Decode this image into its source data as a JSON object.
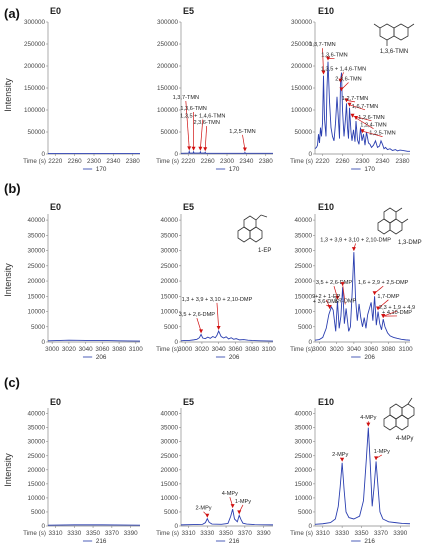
{
  "rows": [
    {
      "label": "(a)",
      "ylabel": "Intensity",
      "panels": [
        {
          "id": "a0",
          "title": "E0",
          "legend": "170",
          "struct": null,
          "show_xlabel": true
        },
        {
          "id": "a1",
          "title": "E5",
          "legend": "170",
          "struct": null,
          "show_xlabel": true
        },
        {
          "id": "a2",
          "title": "E10",
          "legend": "170",
          "struct": "1,3,6-TMN",
          "show_xlabel": true
        }
      ]
    },
    {
      "label": "(b)",
      "ylabel": "Intensity",
      "panels": [
        {
          "id": "b0",
          "title": "E0",
          "legend": "206",
          "struct": null,
          "show_xlabel": false
        },
        {
          "id": "b1",
          "title": "E5",
          "legend": "206",
          "struct": "1-EP",
          "show_xlabel": true
        },
        {
          "id": "b2",
          "title": "E10",
          "legend": "206",
          "struct": "1,3-DMP",
          "show_xlabel": true
        }
      ]
    },
    {
      "label": "(c)",
      "ylabel": "Intensity",
      "panels": [
        {
          "id": "c0",
          "title": "E0",
          "legend": "216",
          "struct": null,
          "show_xlabel": true
        },
        {
          "id": "c1",
          "title": "E5",
          "legend": "216",
          "struct": null,
          "show_xlabel": true
        },
        {
          "id": "c2",
          "title": "E10",
          "legend": "216",
          "struct": "4-MPy",
          "show_xlabel": true
        }
      ]
    }
  ],
  "chart_data": [
    {
      "id": "a0",
      "type": "line",
      "title": "E0",
      "xlabel": "Time (s)",
      "legend": "170",
      "xlim": [
        2205,
        2395
      ],
      "ylim": [
        0,
        300000
      ],
      "xticks": [
        2220,
        2260,
        2300,
        2340,
        2380
      ],
      "yticks": [
        0,
        50000,
        100000,
        150000,
        200000,
        250000,
        300000
      ],
      "x": [
        2205,
        2395
      ],
      "y": [
        1000,
        1000
      ],
      "annotations": []
    },
    {
      "id": "a1",
      "type": "line",
      "title": "E5",
      "xlabel": "Time (s)",
      "legend": "170",
      "xlim": [
        2205,
        2395
      ],
      "ylim": [
        0,
        300000
      ],
      "xticks": [
        2220,
        2260,
        2300,
        2340,
        2380
      ],
      "yticks": [
        0,
        50000,
        100000,
        150000,
        200000,
        250000,
        300000
      ],
      "x": [
        2205,
        2215,
        2221,
        2222,
        2223,
        2230,
        2231,
        2232,
        2244,
        2245,
        2246,
        2254,
        2255,
        2256,
        2300,
        2336,
        2337,
        2338,
        2395
      ],
      "y": [
        1500,
        1800,
        2000,
        6000,
        2000,
        2000,
        5000,
        2000,
        2000,
        5000,
        2000,
        2000,
        4000,
        1500,
        1500,
        1500,
        3500,
        1500,
        1500
      ],
      "annotations": [
        {
          "text": "1,3,7-TMN",
          "x": 2222,
          "y": 6000,
          "label_x": 2215,
          "label_y": 125000
        },
        {
          "text": "1,3,6-TMN",
          "x": 2231,
          "y": 5000,
          "label_x": 2231,
          "label_y": 100000
        },
        {
          "text": "1,3,5 + 1,4,6-TMN",
          "x": 2245,
          "y": 5000,
          "label_x": 2250,
          "label_y": 83000
        },
        {
          "text": "2,3,6-TMN",
          "x": 2255,
          "y": 4000,
          "label_x": 2258,
          "label_y": 68000
        },
        {
          "text": "1,2,5-TMN",
          "x": 2337,
          "y": 3500,
          "label_x": 2332,
          "label_y": 48000
        }
      ]
    },
    {
      "id": "a2",
      "type": "line",
      "title": "E10",
      "xlabel": "Time (s)",
      "legend": "170",
      "xlim": [
        2205,
        2395
      ],
      "ylim": [
        0,
        300000
      ],
      "xticks": [
        2220,
        2260,
        2300,
        2340,
        2380
      ],
      "yticks": [
        0,
        50000,
        100000,
        150000,
        200000,
        250000,
        300000
      ],
      "x": [
        2205,
        2208,
        2210,
        2212,
        2214,
        2216,
        2218,
        2220,
        2222,
        2224,
        2227,
        2229,
        2231,
        2234,
        2237,
        2240,
        2243,
        2246,
        2249,
        2252,
        2254,
        2256,
        2258,
        2260,
        2263,
        2266,
        2268,
        2270,
        2272,
        2274,
        2277,
        2279,
        2282,
        2285,
        2287,
        2290,
        2293,
        2296,
        2299,
        2302,
        2305,
        2308,
        2312,
        2315,
        2318,
        2322,
        2326,
        2330,
        2334,
        2337,
        2340,
        2343,
        2346,
        2350,
        2355,
        2360,
        2366,
        2370,
        2375,
        2380,
        2386,
        2390,
        2395
      ],
      "y": [
        12000,
        15000,
        20000,
        45000,
        25000,
        60000,
        40000,
        70000,
        178000,
        80000,
        40000,
        150000,
        210000,
        120000,
        60000,
        40000,
        30000,
        70000,
        130000,
        75000,
        35000,
        160000,
        185000,
        100000,
        40000,
        80000,
        115000,
        60000,
        35000,
        105000,
        50000,
        30000,
        55000,
        28000,
        75000,
        32000,
        22000,
        60000,
        30000,
        45000,
        20000,
        50000,
        25000,
        22000,
        15000,
        20000,
        30000,
        15000,
        18000,
        30000,
        22000,
        12000,
        15000,
        10000,
        12000,
        8000,
        10000,
        7000,
        9000,
        8000,
        7000,
        6000,
        6000
      ],
      "annotations": [
        {
          "text": "1,3,7-TMN",
          "x": 2222,
          "y": 178000,
          "label_x": 2220,
          "label_y": 245000
        },
        {
          "text": "1,3,6-TMN",
          "x": 2231,
          "y": 210000,
          "label_x": 2244,
          "label_y": 222000
        },
        {
          "text": "1,3,5 + 1,4,6-TMN",
          "x": 2256,
          "y": 160000,
          "label_x": 2262,
          "label_y": 190000
        },
        {
          "text": "2,3,6-TMN",
          "x": 2258,
          "y": 140000,
          "label_x": 2272,
          "label_y": 167000
        },
        {
          "text": "1,2,7-TMN",
          "x": 2268,
          "y": 115000,
          "label_x": 2285,
          "label_y": 123000
        },
        {
          "text": "1,6,7-TMN",
          "x": 2274,
          "y": 105000,
          "label_x": 2305,
          "label_y": 105000
        },
        {
          "text": "1,2,6-TMN",
          "x": 2280,
          "y": 80000,
          "label_x": 2318,
          "label_y": 80000
        },
        {
          "text": "1,2,4-TMN",
          "x": 2287,
          "y": 75000,
          "label_x": 2322,
          "label_y": 62000
        },
        {
          "text": "1,2,5-TMN",
          "x": 2300,
          "y": 45000,
          "label_x": 2340,
          "label_y": 44000
        }
      ]
    },
    {
      "id": "b0",
      "type": "line",
      "title": "E0",
      "xlabel": "",
      "legend": "206",
      "xlim": [
        2995,
        3105
      ],
      "ylim": [
        0,
        42000
      ],
      "xticks": [
        3000,
        3020,
        3040,
        3060,
        3080,
        3100
      ],
      "yticks": [
        0,
        5000,
        10000,
        15000,
        20000,
        25000,
        30000,
        35000,
        40000
      ],
      "x": [
        2995,
        3020,
        3040,
        3060,
        3080,
        3105
      ],
      "y": [
        400,
        600,
        500,
        500,
        400,
        300
      ],
      "annotations": []
    },
    {
      "id": "b1",
      "type": "line",
      "title": "E5",
      "xlabel": "Time (s)",
      "legend": "206",
      "xlim": [
        2995,
        3105
      ],
      "ylim": [
        0,
        42000
      ],
      "xticks": [
        3000,
        3020,
        3040,
        3060,
        3080,
        3100
      ],
      "yticks": [
        0,
        5000,
        10000,
        15000,
        20000,
        25000,
        30000,
        35000,
        40000
      ],
      "x": [
        2995,
        3000,
        3005,
        3010,
        3014,
        3017,
        3019,
        3021,
        3024,
        3027,
        3030,
        3033,
        3036,
        3038,
        3040,
        3043,
        3046,
        3049,
        3052,
        3055,
        3058,
        3061,
        3065,
        3070,
        3075,
        3080,
        3090,
        3105
      ],
      "y": [
        400,
        500,
        500,
        700,
        900,
        1400,
        2500,
        1300,
        1100,
        1600,
        1200,
        1800,
        1400,
        2200,
        3600,
        1800,
        1300,
        1700,
        1000,
        1400,
        900,
        1100,
        700,
        800,
        600,
        500,
        400,
        300
      ],
      "annotations": [
        {
          "text": "1,3 + 3,9 + 3,10 + 2,10-DMP",
          "x": 3040,
          "y": 3600,
          "label_x": 3038,
          "label_y": 13500
        },
        {
          "text": "3,5 + 2,6-DMP",
          "x": 3019,
          "y": 2500,
          "label_x": 3014,
          "label_y": 8500
        }
      ]
    },
    {
      "id": "b2",
      "type": "line",
      "title": "E10",
      "xlabel": "Time (s)",
      "legend": "206",
      "xlim": [
        2995,
        3105
      ],
      "ylim": [
        0,
        42000
      ],
      "xticks": [
        3000,
        3020,
        3040,
        3060,
        3080,
        3100
      ],
      "yticks": [
        0,
        5000,
        10000,
        15000,
        20000,
        25000,
        30000,
        35000,
        40000
      ],
      "x": [
        2995,
        3000,
        3004,
        3008,
        3011,
        3014,
        3016,
        3019,
        3021,
        3023,
        3025,
        3027,
        3029,
        3031,
        3034,
        3036,
        3038,
        3040,
        3042,
        3044,
        3046,
        3048,
        3050,
        3052,
        3054,
        3056,
        3058,
        3060,
        3062,
        3064,
        3066,
        3068,
        3070,
        3072,
        3074,
        3076,
        3079,
        3082,
        3086,
        3090,
        3095,
        3100,
        3105
      ],
      "y": [
        600,
        800,
        1500,
        4500,
        9000,
        11500,
        10500,
        3500,
        13500,
        4500,
        8500,
        18000,
        6000,
        11000,
        3500,
        5000,
        16000,
        29500,
        14000,
        7000,
        12500,
        8000,
        5000,
        8000,
        4500,
        9000,
        11000,
        13000,
        7000,
        15000,
        5500,
        10000,
        6000,
        4000,
        7500,
        5000,
        3000,
        2000,
        1500,
        1200,
        900,
        700,
        600
      ],
      "annotations": [
        {
          "text": "1,3 + 3,9 + 3,10 + 2,10-DMP",
          "x": 3040,
          "y": 29500,
          "label_x": 3042,
          "label_y": 33000
        },
        {
          "text": "3,5 + 2,6-DMP",
          "x": 3021,
          "y": 13500,
          "label_x": 3017,
          "label_y": 19000
        },
        {
          "text": "9+2 + 1-EP",
          "x": 3012,
          "y": 10500,
          "label_x": 3008,
          "label_y": 14500
        },
        {
          "text": "+ 3,6-DMP",
          "x": 3012,
          "y": 10500,
          "label_x": 3008,
          "label_y": 12800
        },
        {
          "text": "2,7-DMP",
          "x": 3027,
          "y": 18000,
          "label_x": 3030,
          "label_y": 13000
        },
        {
          "text": "1,6 + 2,9 + 2,5-DMP",
          "x": 3064,
          "y": 15000,
          "label_x": 3074,
          "label_y": 19000
        },
        {
          "text": "1,7-DMP",
          "x": 3068,
          "y": 10000,
          "label_x": 3080,
          "label_y": 14500
        },
        {
          "text": "2,3 + 1,9 + 4,9",
          "x": 3074,
          "y": 7500,
          "label_x": 3090,
          "label_y": 10800
        },
        {
          "text": "+ 4,10-DMP",
          "x": 3074,
          "y": 7500,
          "label_x": 3090,
          "label_y": 9200
        }
      ]
    },
    {
      "id": "c0",
      "type": "line",
      "title": "E0",
      "xlabel": "Time (s)",
      "legend": "216",
      "xlim": [
        3302,
        3400
      ],
      "ylim": [
        0,
        42000
      ],
      "xticks": [
        3310,
        3330,
        3350,
        3370,
        3390
      ],
      "yticks": [
        0,
        5000,
        10000,
        15000,
        20000,
        25000,
        30000,
        35000,
        40000
      ],
      "x": [
        3302,
        3330,
        3360,
        3400
      ],
      "y": [
        300,
        400,
        400,
        300
      ],
      "annotations": []
    },
    {
      "id": "c1",
      "type": "line",
      "title": "E5",
      "xlabel": "Time (s)",
      "legend": "216",
      "xlim": [
        3302,
        3400
      ],
      "ylim": [
        0,
        42000
      ],
      "xticks": [
        3310,
        3330,
        3350,
        3370,
        3390
      ],
      "yticks": [
        0,
        5000,
        10000,
        15000,
        20000,
        25000,
        30000,
        35000,
        40000
      ],
      "x": [
        3302,
        3315,
        3325,
        3328,
        3330,
        3332,
        3335,
        3345,
        3352,
        3355,
        3357,
        3359,
        3362,
        3364,
        3366,
        3368,
        3372,
        3380,
        3400
      ],
      "y": [
        400,
        500,
        600,
        1200,
        2600,
        1300,
        700,
        600,
        900,
        3500,
        6000,
        2500,
        1500,
        3800,
        2200,
        1000,
        700,
        500,
        400
      ],
      "annotations": [
        {
          "text": "4-MPy",
          "x": 3357,
          "y": 6000,
          "label_x": 3354,
          "label_y": 11000
        },
        {
          "text": "1-MPy",
          "x": 3364,
          "y": 3800,
          "label_x": 3368,
          "label_y": 8200
        },
        {
          "text": "2-MPy",
          "x": 3330,
          "y": 2600,
          "label_x": 3326,
          "label_y": 5800
        }
      ]
    },
    {
      "id": "c2",
      "type": "line",
      "title": "E10",
      "xlabel": "Time (s)",
      "legend": "216",
      "xlim": [
        3302,
        3400
      ],
      "ylim": [
        0,
        42000
      ],
      "xticks": [
        3310,
        3330,
        3350,
        3370,
        3390
      ],
      "yticks": [
        0,
        5000,
        10000,
        15000,
        20000,
        25000,
        30000,
        35000,
        40000
      ],
      "x": [
        3302,
        3310,
        3318,
        3323,
        3326,
        3328,
        3330,
        3332,
        3334,
        3337,
        3342,
        3348,
        3352,
        3355,
        3357,
        3359,
        3361,
        3363,
        3365,
        3367,
        3369,
        3372,
        3378,
        3385,
        3392,
        3400
      ],
      "y": [
        600,
        800,
        1200,
        2500,
        7000,
        14000,
        22500,
        13000,
        5000,
        3000,
        2500,
        3500,
        9000,
        24000,
        35000,
        22000,
        7000,
        14000,
        23000,
        14000,
        5000,
        2500,
        1500,
        1200,
        900,
        800
      ],
      "annotations": [
        {
          "text": "4-MPy",
          "x": 3357,
          "y": 35000,
          "label_x": 3357,
          "label_y": 38000
        },
        {
          "text": "2-MPy",
          "x": 3330,
          "y": 22500,
          "label_x": 3328,
          "label_y": 25000
        },
        {
          "text": "1-MPy",
          "x": 3365,
          "y": 23000,
          "label_x": 3371,
          "label_y": 26000
        }
      ]
    }
  ]
}
